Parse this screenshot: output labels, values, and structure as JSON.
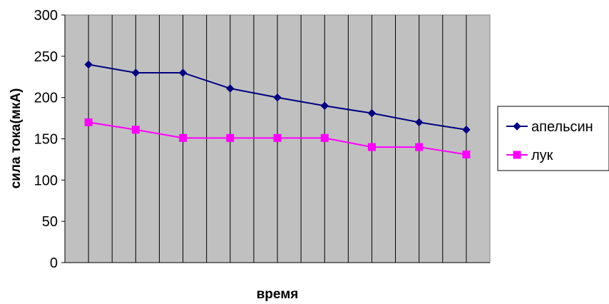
{
  "chart_data": {
    "type": "line",
    "xlabel": "время",
    "ylabel": "сила тока(мкА)",
    "ylim": [
      0,
      300
    ],
    "yticks": [
      "0",
      "50",
      "100",
      "150",
      "200",
      "250",
      "300"
    ],
    "grid": "vertical",
    "legend_position": "right",
    "x": [
      1,
      2,
      3,
      4,
      5,
      6,
      7,
      8,
      9
    ],
    "series": [
      {
        "name": "апельсин",
        "color": "#000080",
        "marker": "diamond",
        "values": [
          240,
          230,
          230,
          211,
          200,
          190,
          181,
          170,
          161
        ]
      },
      {
        "name": "лук",
        "color": "#ff00ff",
        "marker": "square",
        "values": [
          170,
          161,
          151,
          151,
          151,
          151,
          140,
          140,
          131
        ]
      }
    ],
    "plot_background": "#c0c0c0"
  }
}
